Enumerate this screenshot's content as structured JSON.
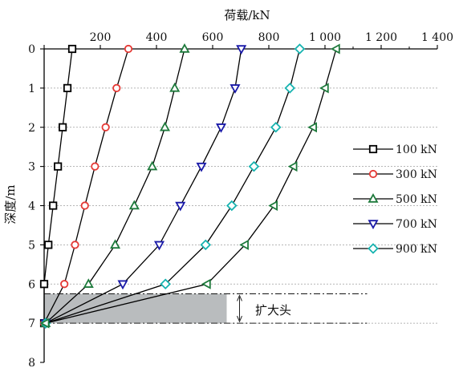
{
  "chart_data": {
    "type": "line",
    "title": "",
    "xlabel": "荷载/kN",
    "ylabel": "深度/m",
    "x_axis_position": "top",
    "y_axis_inverted": true,
    "xlim": [
      0,
      1400
    ],
    "ylim": [
      0,
      8
    ],
    "xticks": [
      0,
      200,
      400,
      600,
      800,
      1000,
      1200,
      1400
    ],
    "xtick_labels": [
      "200",
      "400",
      "600",
      "800",
      "1 000",
      "1 200",
      "1 400"
    ],
    "yticks": [
      0,
      1,
      2,
      3,
      4,
      5,
      6,
      7,
      8
    ],
    "ytick_labels": [
      "0",
      "1",
      "2",
      "3",
      "4",
      "5",
      "6",
      "7",
      "8"
    ],
    "grid": "horizontal dotted",
    "legend_position": "right",
    "series": [
      {
        "name": "100 kN",
        "marker": "square",
        "color": "#000000",
        "points": [
          [
            100,
            0
          ],
          [
            83,
            1
          ],
          [
            66,
            2
          ],
          [
            49,
            3
          ],
          [
            32,
            4
          ],
          [
            15,
            5
          ],
          [
            0,
            6
          ],
          [
            0,
            7
          ]
        ]
      },
      {
        "name": "300 kN",
        "marker": "circle",
        "color": "#e53935",
        "points": [
          [
            300,
            0
          ],
          [
            258,
            1
          ],
          [
            219,
            2
          ],
          [
            181,
            3
          ],
          [
            145,
            4
          ],
          [
            110,
            5
          ],
          [
            72,
            6
          ],
          [
            0,
            7
          ]
        ]
      },
      {
        "name": "500 kN",
        "marker": "triangle-up",
        "color": "#1e7a3c",
        "points": [
          [
            500,
            0
          ],
          [
            465,
            1
          ],
          [
            430,
            2
          ],
          [
            385,
            3
          ],
          [
            321,
            4
          ],
          [
            253,
            5
          ],
          [
            158,
            6
          ],
          [
            5,
            7
          ]
        ]
      },
      {
        "name": "700 kN",
        "marker": "triangle-down",
        "color": "#1a1aa8",
        "points": [
          [
            702,
            0
          ],
          [
            680,
            1
          ],
          [
            630,
            2
          ],
          [
            560,
            3
          ],
          [
            485,
            4
          ],
          [
            410,
            5
          ],
          [
            280,
            6
          ],
          [
            5,
            7
          ]
        ]
      },
      {
        "name": "900 kN",
        "marker": "diamond",
        "color": "#16b3b0",
        "points": [
          [
            910,
            0
          ],
          [
            875,
            1
          ],
          [
            825,
            2
          ],
          [
            747,
            3
          ],
          [
            668,
            4
          ],
          [
            575,
            5
          ],
          [
            432,
            6
          ],
          [
            5,
            7
          ]
        ]
      },
      {
        "name": "",
        "marker": "triangle-left",
        "color": "#1e7a3c",
        "points": [
          [
            1040,
            0
          ],
          [
            1000,
            1
          ],
          [
            958,
            2
          ],
          [
            888,
            3
          ],
          [
            818,
            4
          ],
          [
            715,
            5
          ],
          [
            580,
            6
          ],
          [
            5,
            7
          ]
        ]
      }
    ],
    "annotations": [
      {
        "text": "扩大头",
        "from_depth": 6.25,
        "to_depth": 7.0,
        "style": "shaded region with dash-dot boundary lines"
      }
    ]
  }
}
